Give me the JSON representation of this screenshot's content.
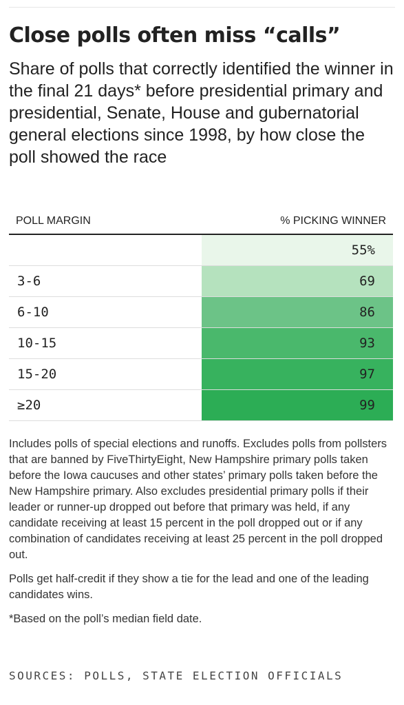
{
  "title": "Close polls often miss “calls”",
  "subtitle": "Share of polls that correctly identified the winner in the final 21 days* before presidential primary and presidential, Senate, House and gubernatorial general elections since 1998, by how close the poll showed the race",
  "chart_data": {
    "type": "table",
    "columns": [
      "POLL MARGIN",
      "% PICKING WINNER"
    ],
    "rows": [
      {
        "margin": "",
        "value": 55,
        "display": "55%",
        "color": "#e9f6ea"
      },
      {
        "margin": "3-6",
        "value": 69,
        "display": "69",
        "color": "#b5e2be"
      },
      {
        "margin": "6-10",
        "value": 86,
        "display": "86",
        "color": "#6cc387"
      },
      {
        "margin": "10-15",
        "value": 93,
        "display": "93",
        "color": "#4ab86c"
      },
      {
        "margin": "15-20",
        "value": 97,
        "display": "97",
        "color": "#37b25e"
      },
      {
        "margin": "≥20",
        "value": 99,
        "display": "99",
        "color": "#2cad55"
      }
    ]
  },
  "notes": [
    "Includes polls of special elections and runoffs. Excludes polls from pollsters that are banned by FiveThirtyEight, New Hampshire primary polls taken before the Iowa caucuses and other states’ primary polls taken before the New Hampshire primary. Also excludes presidential primary polls if their leader or runner-up dropped out before that primary was held, if any candidate receiving at least 15 percent in the poll dropped out or if any combination of candidates receiving at least 25 percent in the poll dropped out.",
    "Polls get half-credit if they show a tie for the lead and one of the leading candidates wins.",
    "*Based on the poll’s median field date."
  ],
  "sources": "SOURCES: POLLS, STATE ELECTION OFFICIALS"
}
